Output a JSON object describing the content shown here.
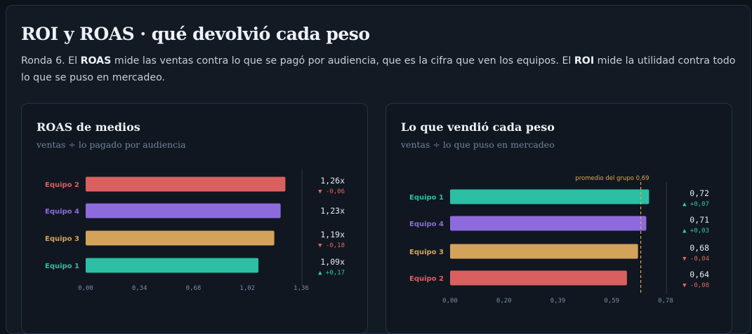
{
  "header": {
    "title": "ROI y ROAS · qué devolvió cada peso",
    "desc_1": "Ronda 6. El ",
    "desc_roas": "ROAS",
    "desc_2": " mide las ventas contra lo que se pagó por audiencia, que es la cifra que ven los equipos. El ",
    "desc_roi": "ROI",
    "desc_3": " mide la utilidad contra todo lo que se puso en mercadeo."
  },
  "colors": {
    "Equipo 1": "#2cbfa3",
    "Equipo 2": "#d9605f",
    "Equipo 3": "#d4a35a",
    "Equipo 4": "#8d6bdc",
    "up": "#33c9a6",
    "down": "#e4655f",
    "axis": "#2a3848",
    "reference": "#e0a94a"
  },
  "chart_data": [
    {
      "type": "bar",
      "orientation": "horizontal",
      "title": "ROAS de medios",
      "subtitle": "ventas ÷ lo pagado por audiencia",
      "categories": [
        "Equipo 2",
        "Equipo 4",
        "Equipo 3",
        "Equipo 1"
      ],
      "values": [
        1.26,
        1.23,
        1.19,
        1.09
      ],
      "value_labels": [
        "1,26x",
        "1,23x",
        "1,19x",
        "1,09x"
      ],
      "deltas": [
        {
          "dir": "down",
          "text": "▼ -0,06"
        },
        null,
        {
          "dir": "down",
          "text": "▼ -0,18"
        },
        {
          "dir": "up",
          "text": "▲ +0,17"
        }
      ],
      "xlim": [
        0,
        1.36
      ],
      "xticks": [
        0,
        0.34,
        0.68,
        1.02,
        1.36
      ],
      "xtick_labels": [
        "0,00",
        "0,34",
        "0,68",
        "1,02",
        "1,36"
      ],
      "grid": false
    },
    {
      "type": "bar",
      "orientation": "horizontal",
      "title": "Lo que vendió cada peso",
      "subtitle": "ventas ÷ lo que puso en mercadeo",
      "categories": [
        "Equipo 1",
        "Equipo 4",
        "Equipo 3",
        "Equipo 2"
      ],
      "values": [
        0.72,
        0.71,
        0.68,
        0.64
      ],
      "value_labels": [
        "0,72",
        "0,71",
        "0,68",
        "0,64"
      ],
      "deltas": [
        {
          "dir": "up",
          "text": "▲ +0,07"
        },
        {
          "dir": "up",
          "text": "▲ +0,03"
        },
        {
          "dir": "down",
          "text": "▼ -0,04"
        },
        {
          "dir": "down",
          "text": "▼ -0,08"
        }
      ],
      "reference_line": {
        "value": 0.69,
        "label": "promedio del grupo 0,69"
      },
      "xlim": [
        0,
        0.78
      ],
      "xticks": [
        0,
        0.195,
        0.39,
        0.585,
        0.78
      ],
      "xtick_labels": [
        "0,00",
        "0,20",
        "0,39",
        "0,59",
        "0,78"
      ],
      "grid": false
    }
  ]
}
